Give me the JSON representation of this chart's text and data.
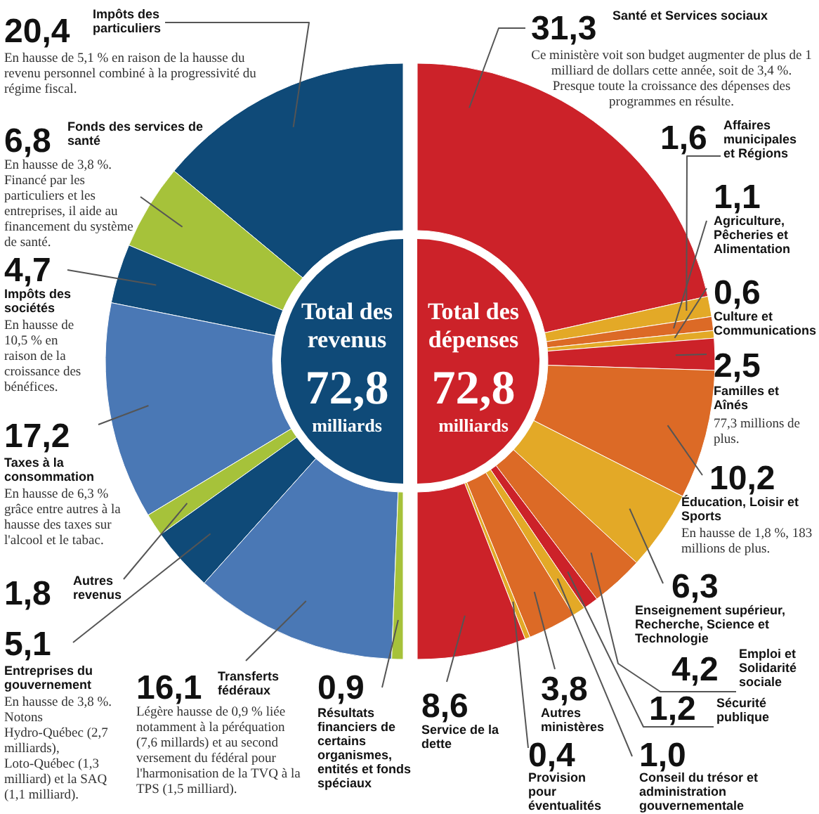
{
  "chart_data": [
    {
      "type": "donut",
      "title": "Total des revenus",
      "subtitle": "72,8",
      "annotations": [
        "milliards",
        {
          "text": "En hausse de 5,1 % en raison de la hausse du revenu personnel combiné à la progressivité du régime fiscal.",
          "x": "Impôts des particuliers"
        },
        {
          "text": "En hausse de 3,8 %. Financé par les particuliers et les entreprises, il aide au financement du système de santé.",
          "x": "Fonds des services de santé"
        },
        {
          "text": "En hausse de 10,5 % en raison de la croissance des bénéfices.",
          "x": "Impôts des sociétés"
        },
        {
          "text": "En hausse de 6,3 % grâce entre autres à la hausse des taxes sur l'alcool et le tabac.",
          "x": "Taxes à la consommation"
        },
        {
          "text": "En hausse de 3,8 %. Notons Hydro-Québec (2,7 milliards), Loto-Québec (1,3 milliard) et la SAQ (1,1 milliard).",
          "x": "Entreprises du gouvernement"
        },
        {
          "text": "Légère hausse de 0,9 % liée notamment à la péréquation (7,6 millards) et au second versement du fédéral pour l'harmonisation de la TVQ à la TPS (1,5 milliard).",
          "x": "Transferts fédéraux"
        }
      ],
      "categories": [
        "Impôts des particuliers",
        "Fonds des services de santé",
        "Impôts des sociétés",
        "Taxes à la consommation",
        "Autres revenus",
        "Entreprises du gouvernement",
        "Transferts fédéraux",
        "Résultats financiers de certains organismes, entités et fonds spéciaux"
      ],
      "values": [
        20.4,
        6.8,
        4.7,
        17.2,
        1.8,
        5.1,
        16.1,
        0.9
      ],
      "value_labels": [
        "20,4",
        "6,8",
        "4,7",
        "17,2",
        "1,8",
        "5,1",
        "16,1",
        "0,9"
      ],
      "colors": [
        "#0f4a78",
        "#a6c23a",
        "#0f4a78",
        "#4a78b5",
        "#a6c23a",
        "#0f4a78",
        "#4a78b5",
        "#a6c23a"
      ],
      "legend": false
    },
    {
      "type": "donut",
      "title": "Total des dépenses",
      "subtitle": "72,8",
      "annotations": [
        "milliards",
        {
          "text": "Ce ministère voit son budget augmenter de plus de 1 milliard de dollars cette année, soit de 3,4 %. Presque toute la croissance des dépenses des programmes en résulte.",
          "x": "Santé et Services sociaux"
        },
        {
          "text": "77,3 millions de plus.",
          "x": "Familles et Aînés"
        },
        {
          "text": "En hausse de 1,8 %, 183 millions de plus.",
          "x": "Éducation, Loisir et Sports"
        }
      ],
      "categories": [
        "Santé et Services sociaux",
        "Affaires municipales et Régions",
        "Agriculture, Pêcheries et Alimentation",
        "Culture et Communications",
        "Familles et Aînés",
        "Éducation, Loisir et Sports",
        "Enseignement supérieur, Recherche, Science et Technologie",
        "Emploi et Solidarité sociale",
        "Sécurité publique",
        "Conseil du trésor et administration gouvernementale",
        "Autres ministères",
        "Provision pour éventualités",
        "Service de la dette"
      ],
      "values": [
        31.3,
        1.6,
        1.1,
        0.6,
        2.5,
        10.2,
        6.3,
        4.2,
        1.2,
        1.0,
        3.8,
        0.4,
        8.6
      ],
      "value_labels": [
        "31,3",
        "1,6",
        "1,1",
        "0,6",
        "2,5",
        "10,2",
        "6,3",
        "4,2",
        "1,2",
        "1,0",
        "3,8",
        "0,4",
        "8,6"
      ],
      "colors": [
        "#cc2229",
        "#e3a927",
        "#dc6a26",
        "#e3a927",
        "#cc2229",
        "#dc6a26",
        "#e3a927",
        "#dc6a26",
        "#cc2229",
        "#e3a927",
        "#dc6a26",
        "#e3a927",
        "#cc2229"
      ],
      "legend": false
    }
  ]
}
